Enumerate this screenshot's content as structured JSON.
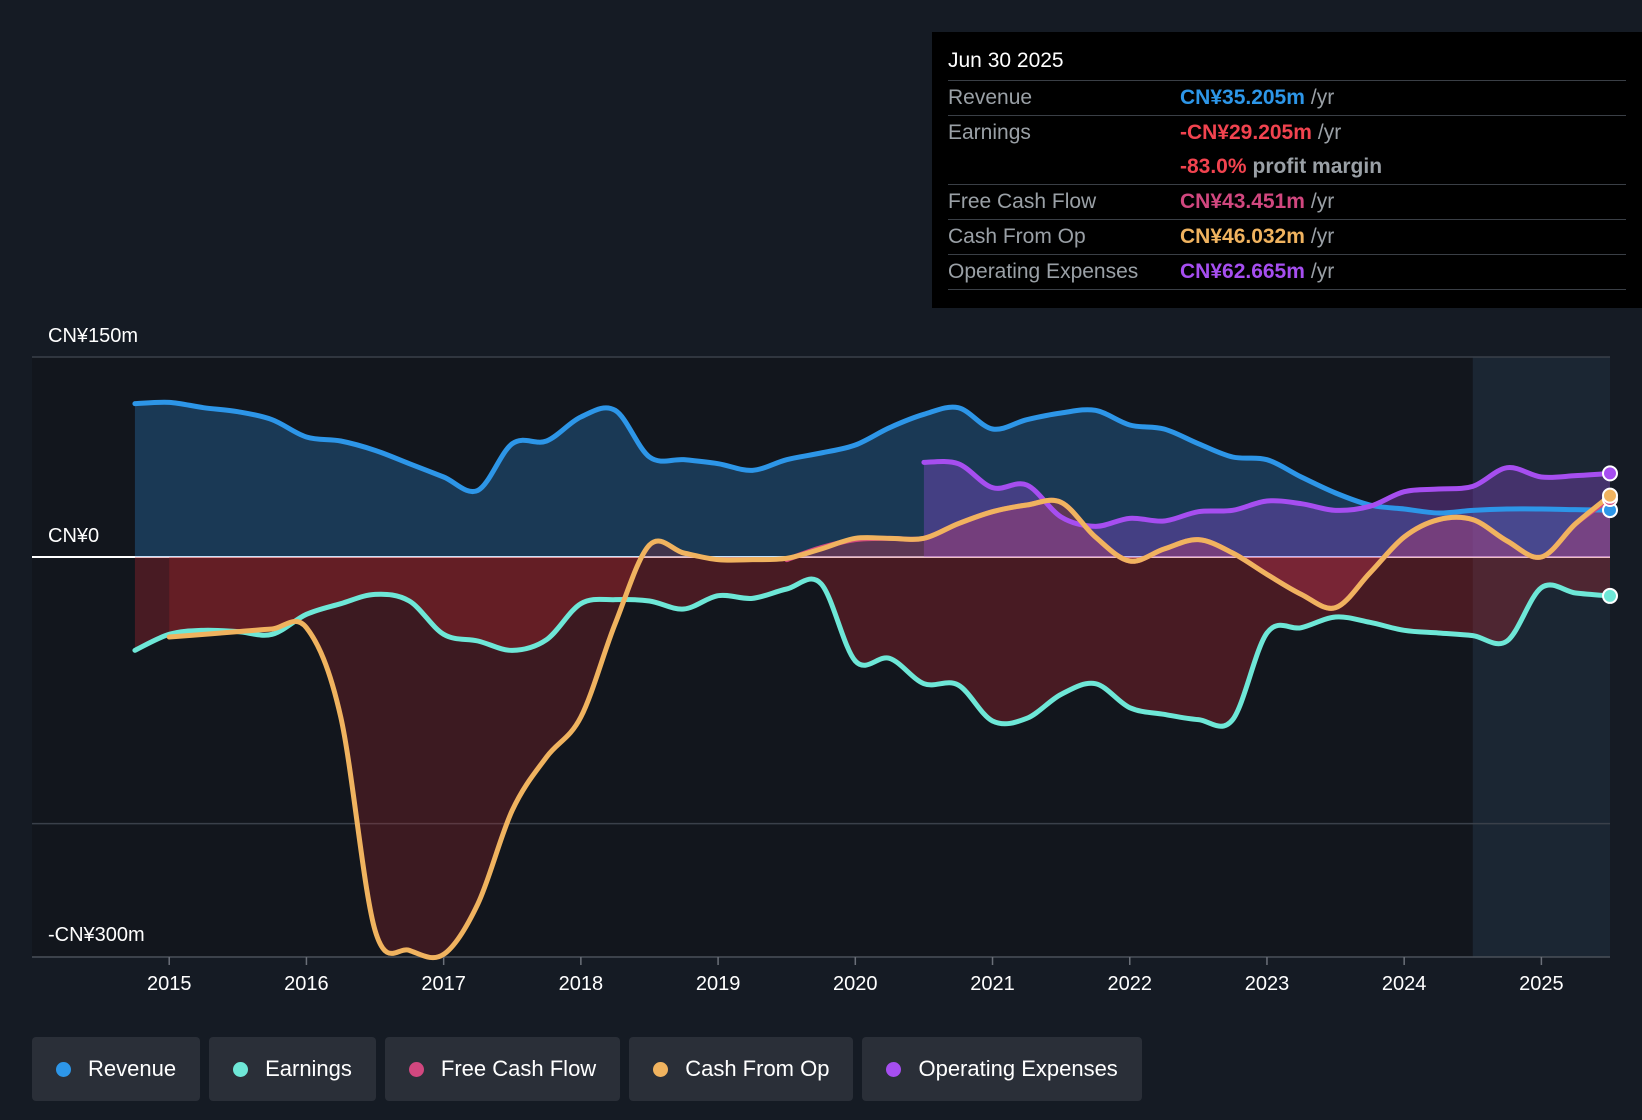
{
  "colors": {
    "revenue": "#2d96e8",
    "earnings": "#6ee7d7",
    "fcf": "#d1477f",
    "cfo": "#f0b35f",
    "opex": "#a64ef0",
    "negative_text": "#f2434f"
  },
  "tooltip": {
    "date": "Jun 30 2025",
    "rows": [
      {
        "label": "Revenue",
        "value": "CN¥35.205m",
        "unit": "/yr"
      },
      {
        "label": "Earnings",
        "value": "-CN¥29.205m",
        "unit": "/yr"
      },
      {
        "label": "",
        "value": "-83.0%",
        "unit": "profit margin"
      },
      {
        "label": "Free Cash Flow",
        "value": "CN¥43.451m",
        "unit": "/yr"
      },
      {
        "label": "Cash From Op",
        "value": "CN¥46.032m",
        "unit": "/yr"
      },
      {
        "label": "Operating Expenses",
        "value": "CN¥62.665m",
        "unit": "/yr"
      }
    ]
  },
  "legend": [
    {
      "label": "Revenue",
      "color": "#2d96e8"
    },
    {
      "label": "Earnings",
      "color": "#6ee7d7"
    },
    {
      "label": "Free Cash Flow",
      "color": "#d1477f"
    },
    {
      "label": "Cash From Op",
      "color": "#f0b35f"
    },
    {
      "label": "Operating Expenses",
      "color": "#a64ef0"
    }
  ],
  "chart_data": {
    "type": "line",
    "title": "",
    "xlabel": "",
    "ylabel": "",
    "y_tick_labels": [
      "CN¥150m",
      "CN¥0",
      "-CN¥300m"
    ],
    "y_ticks": [
      150,
      0,
      -300
    ],
    "ylim": [
      -300,
      150
    ],
    "xlim": [
      2014.0,
      2025.5
    ],
    "x_ticks": [
      2015,
      2016,
      2017,
      2018,
      2019,
      2020,
      2021,
      2022,
      2023,
      2024,
      2025
    ],
    "x_tick_labels": [
      "2015",
      "2016",
      "2017",
      "2018",
      "2019",
      "2020",
      "2021",
      "2022",
      "2023",
      "2024",
      "2025"
    ],
    "forecast_start": 2024.5,
    "series": [
      {
        "name": "Revenue",
        "points": [
          [
            2014.75,
            115
          ],
          [
            2015,
            116
          ],
          [
            2015.25,
            112
          ],
          [
            2015.5,
            109
          ],
          [
            2015.75,
            103
          ],
          [
            2016,
            90
          ],
          [
            2016.25,
            87
          ],
          [
            2016.5,
            80
          ],
          [
            2016.75,
            70
          ],
          [
            2017,
            60
          ],
          [
            2017.25,
            50
          ],
          [
            2017.5,
            85
          ],
          [
            2017.75,
            87
          ],
          [
            2018,
            105
          ],
          [
            2018.25,
            110
          ],
          [
            2018.5,
            75
          ],
          [
            2018.75,
            73
          ],
          [
            2019,
            70
          ],
          [
            2019.25,
            65
          ],
          [
            2019.5,
            73
          ],
          [
            2019.75,
            78
          ],
          [
            2020,
            84
          ],
          [
            2020.25,
            97
          ],
          [
            2020.5,
            107
          ],
          [
            2020.75,
            112
          ],
          [
            2021,
            96
          ],
          [
            2021.25,
            103
          ],
          [
            2021.5,
            108
          ],
          [
            2021.75,
            110
          ],
          [
            2022,
            99
          ],
          [
            2022.25,
            96
          ],
          [
            2022.5,
            85
          ],
          [
            2022.75,
            75
          ],
          [
            2023,
            73
          ],
          [
            2023.25,
            60
          ],
          [
            2023.5,
            48
          ],
          [
            2023.75,
            39
          ],
          [
            2024,
            36
          ],
          [
            2024.25,
            33
          ],
          [
            2024.5,
            35
          ],
          [
            2024.75,
            36
          ],
          [
            2025,
            36
          ],
          [
            2025.25,
            35.5
          ],
          [
            2025.5,
            35.2
          ]
        ]
      },
      {
        "name": "Earnings",
        "points": [
          [
            2014.75,
            -70
          ],
          [
            2015,
            -58
          ],
          [
            2015.25,
            -55
          ],
          [
            2015.5,
            -56
          ],
          [
            2015.75,
            -58
          ],
          [
            2016,
            -43
          ],
          [
            2016.25,
            -35
          ],
          [
            2016.5,
            -28
          ],
          [
            2016.75,
            -33
          ],
          [
            2017,
            -58
          ],
          [
            2017.25,
            -63
          ],
          [
            2017.5,
            -70
          ],
          [
            2017.75,
            -62
          ],
          [
            2018,
            -35
          ],
          [
            2018.25,
            -32
          ],
          [
            2018.5,
            -33
          ],
          [
            2018.75,
            -39
          ],
          [
            2019,
            -29
          ],
          [
            2019.25,
            -31
          ],
          [
            2019.5,
            -24
          ],
          [
            2019.75,
            -20
          ],
          [
            2020,
            -78
          ],
          [
            2020.25,
            -76
          ],
          [
            2020.5,
            -95
          ],
          [
            2020.75,
            -96
          ],
          [
            2021,
            -123
          ],
          [
            2021.25,
            -121
          ],
          [
            2021.5,
            -103
          ],
          [
            2021.75,
            -95
          ],
          [
            2022,
            -113
          ],
          [
            2022.25,
            -118
          ],
          [
            2022.5,
            -122
          ],
          [
            2022.75,
            -122
          ],
          [
            2023,
            -57
          ],
          [
            2023.25,
            -53
          ],
          [
            2023.5,
            -45
          ],
          [
            2023.75,
            -49
          ],
          [
            2024,
            -55
          ],
          [
            2024.25,
            -57
          ],
          [
            2024.5,
            -59
          ],
          [
            2024.75,
            -63
          ],
          [
            2025,
            -23
          ],
          [
            2025.25,
            -27
          ],
          [
            2025.5,
            -29.2
          ]
        ]
      },
      {
        "name": "Free Cash Flow",
        "points": [
          [
            2019.5,
            -2
          ],
          [
            2019.75,
            7
          ],
          [
            2020,
            13
          ],
          [
            2020.25,
            14
          ],
          [
            2020.5,
            14
          ],
          [
            2020.75,
            25
          ],
          [
            2021,
            34
          ],
          [
            2021.25,
            39
          ],
          [
            2021.5,
            41
          ],
          [
            2021.75,
            15
          ],
          [
            2022,
            -3
          ],
          [
            2022.25,
            6
          ],
          [
            2022.5,
            13
          ],
          [
            2022.75,
            3
          ],
          [
            2023,
            -13
          ],
          [
            2023.25,
            -28
          ],
          [
            2023.5,
            -38
          ],
          [
            2023.75,
            -12
          ],
          [
            2024,
            15
          ],
          [
            2024.25,
            28
          ],
          [
            2024.5,
            28
          ],
          [
            2024.75,
            12
          ],
          [
            2025,
            0
          ],
          [
            2025.25,
            25
          ],
          [
            2025.5,
            43.5
          ]
        ]
      },
      {
        "name": "Cash From Op",
        "points": [
          [
            2015,
            -60
          ],
          [
            2015.25,
            -58
          ],
          [
            2015.5,
            -56
          ],
          [
            2015.75,
            -54
          ],
          [
            2016,
            -53
          ],
          [
            2016.25,
            -120
          ],
          [
            2016.5,
            -280
          ],
          [
            2016.75,
            -295
          ],
          [
            2017,
            -298
          ],
          [
            2017.25,
            -260
          ],
          [
            2017.5,
            -190
          ],
          [
            2017.75,
            -150
          ],
          [
            2018,
            -120
          ],
          [
            2018.25,
            -50
          ],
          [
            2018.5,
            9
          ],
          [
            2018.75,
            3
          ],
          [
            2019,
            -2
          ],
          [
            2019.25,
            -2
          ],
          [
            2019.5,
            -1
          ],
          [
            2019.75,
            6
          ],
          [
            2020,
            14
          ],
          [
            2020.25,
            14
          ],
          [
            2020.5,
            14
          ],
          [
            2020.75,
            25
          ],
          [
            2021,
            34
          ],
          [
            2021.25,
            39
          ],
          [
            2021.5,
            41
          ],
          [
            2021.75,
            15
          ],
          [
            2022,
            -3
          ],
          [
            2022.25,
            6
          ],
          [
            2022.5,
            13
          ],
          [
            2022.75,
            3
          ],
          [
            2023,
            -13
          ],
          [
            2023.25,
            -28
          ],
          [
            2023.5,
            -38
          ],
          [
            2023.75,
            -12
          ],
          [
            2024,
            15
          ],
          [
            2024.25,
            28
          ],
          [
            2024.5,
            28
          ],
          [
            2024.75,
            12
          ],
          [
            2025,
            0
          ],
          [
            2025.25,
            25
          ],
          [
            2025.5,
            46
          ]
        ]
      },
      {
        "name": "Operating Expenses",
        "points": [
          [
            2020.5,
            71
          ],
          [
            2020.75,
            70
          ],
          [
            2021,
            52
          ],
          [
            2021.25,
            54
          ],
          [
            2021.5,
            30
          ],
          [
            2021.75,
            23
          ],
          [
            2022,
            29
          ],
          [
            2022.25,
            27
          ],
          [
            2022.5,
            34
          ],
          [
            2022.75,
            35
          ],
          [
            2023,
            42
          ],
          [
            2023.25,
            40
          ],
          [
            2023.5,
            35
          ],
          [
            2023.75,
            38
          ],
          [
            2024,
            49
          ],
          [
            2024.25,
            51
          ],
          [
            2024.5,
            53
          ],
          [
            2024.75,
            67
          ],
          [
            2025,
            60
          ],
          [
            2025.25,
            61
          ],
          [
            2025.5,
            62.7
          ]
        ]
      }
    ]
  }
}
